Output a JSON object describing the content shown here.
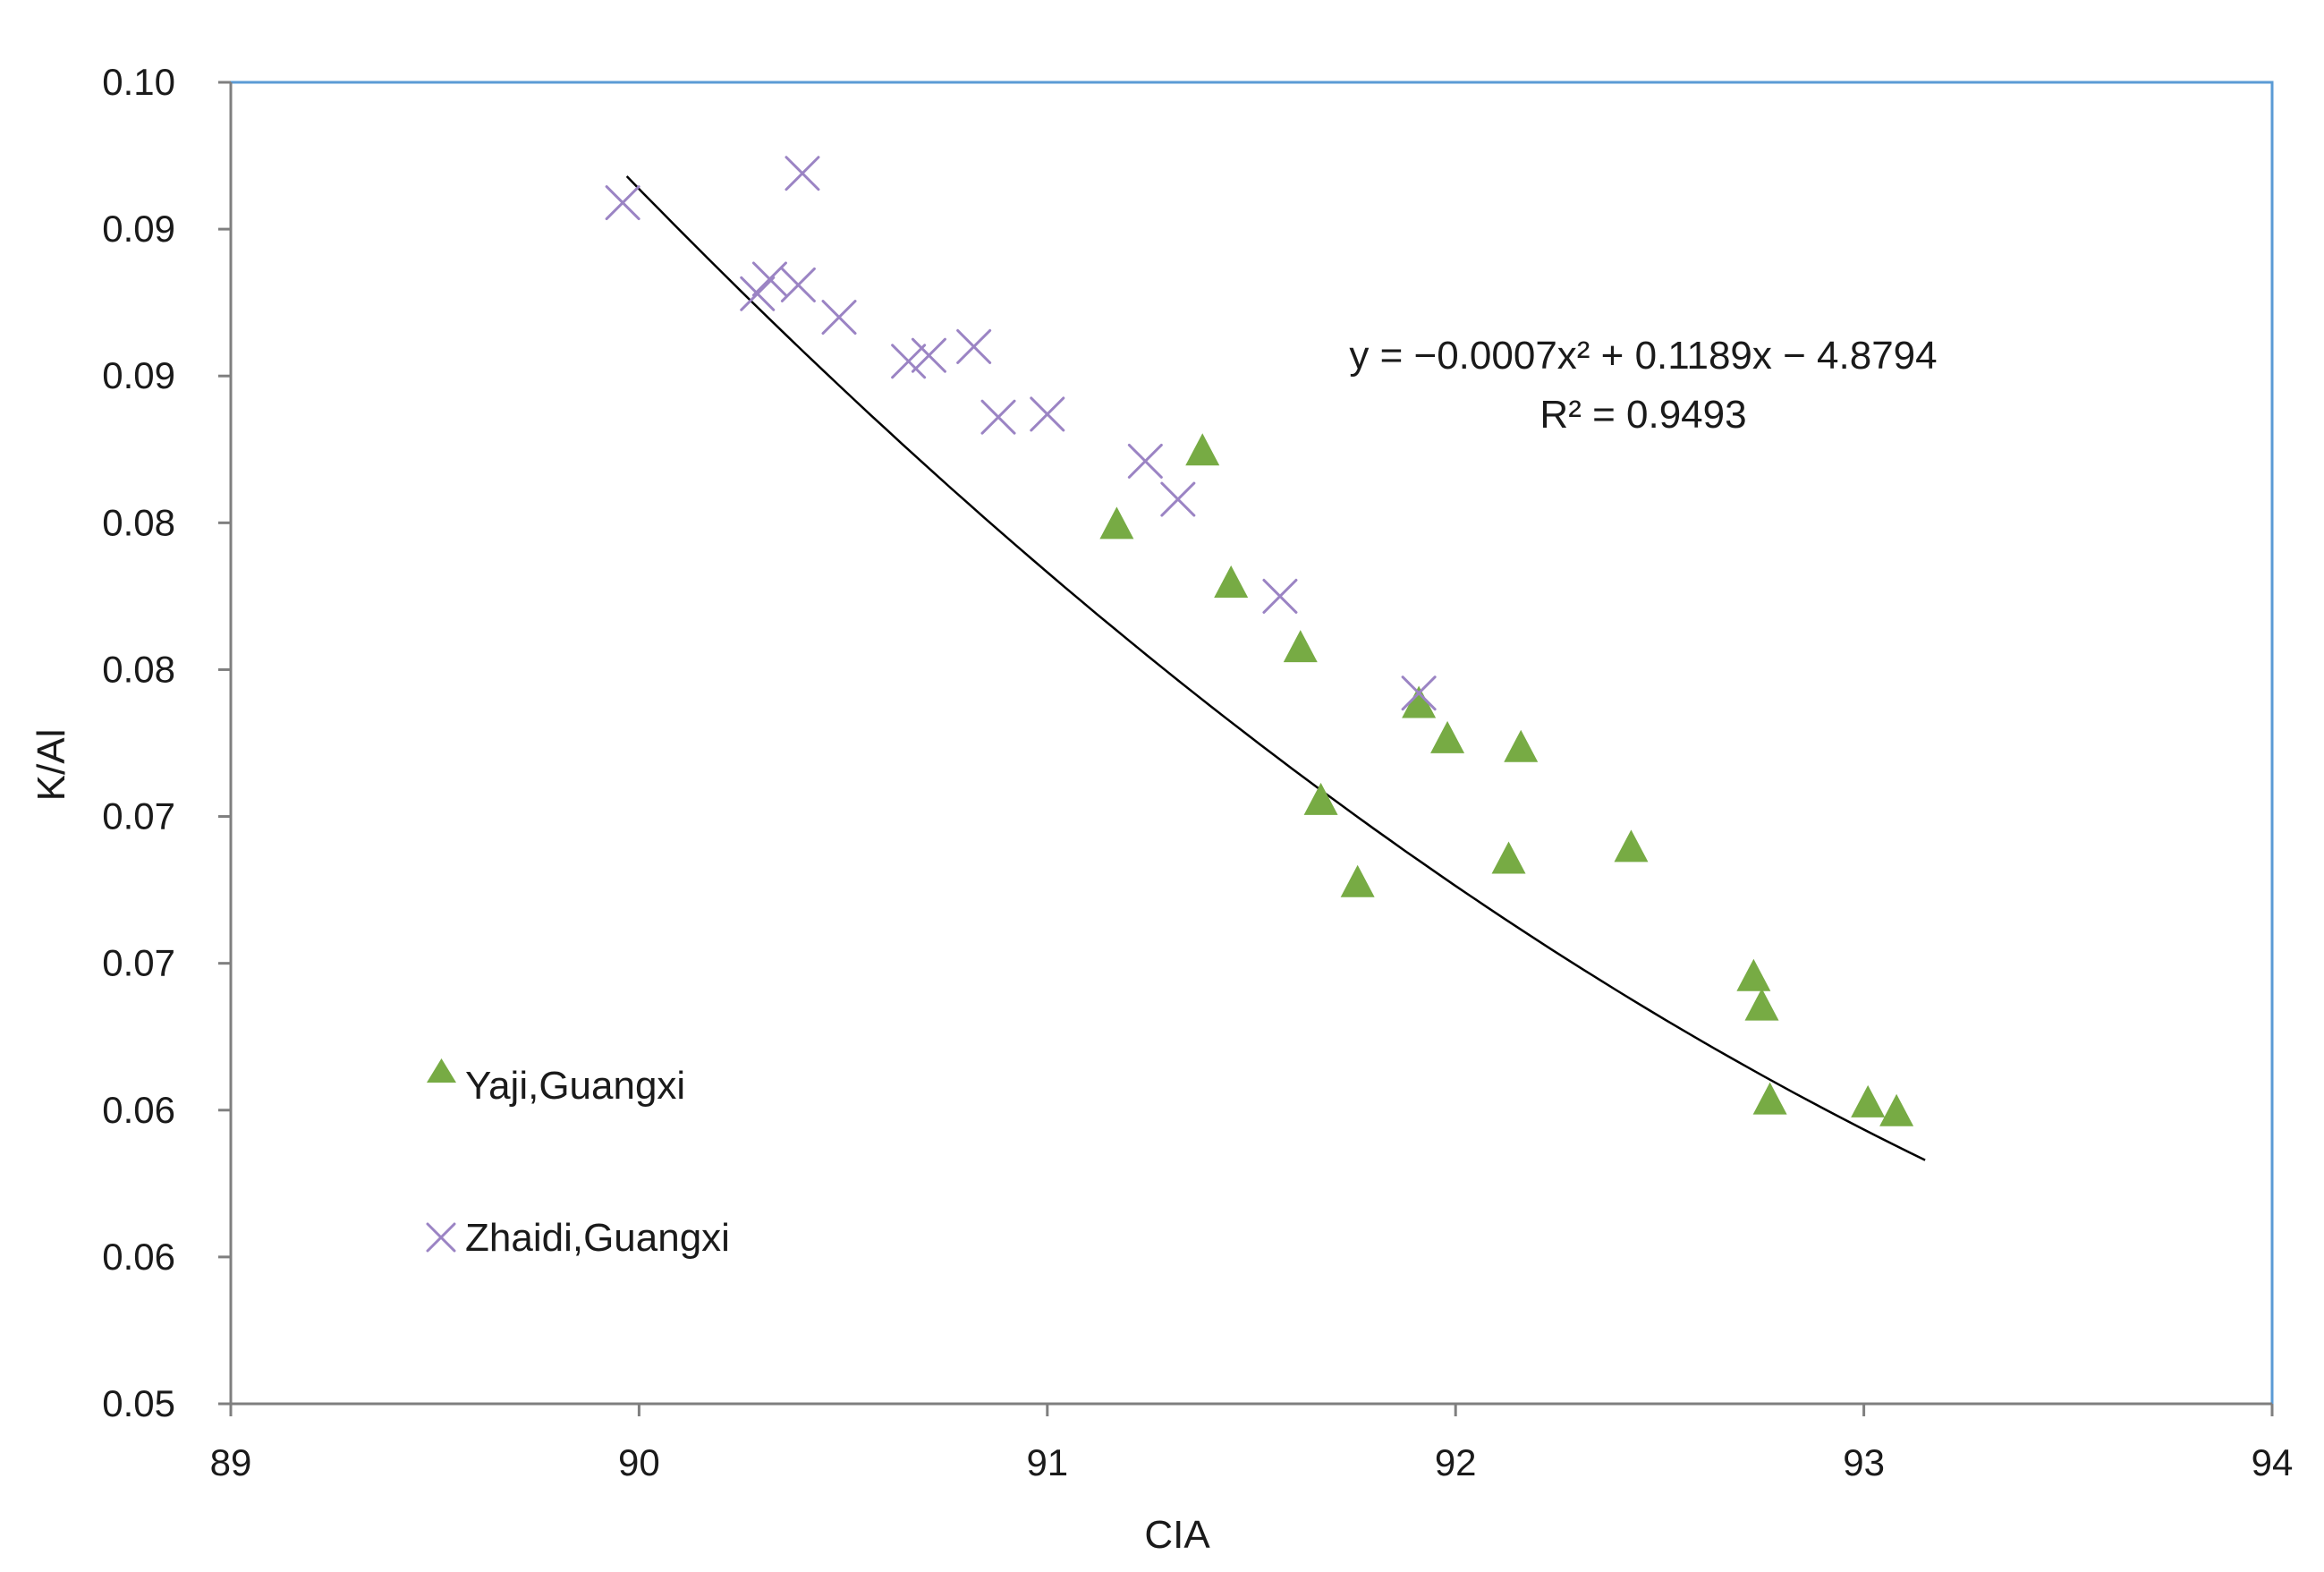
{
  "chart_data": {
    "type": "scatter",
    "xlabel": "CIA",
    "ylabel": "K/Al",
    "xlim": [
      89,
      94
    ],
    "ylim": [
      0.05,
      0.095
    ],
    "x_ticks": [
      89,
      90,
      91,
      92,
      93,
      94
    ],
    "x_tick_labels": [
      "89",
      "90",
      "91",
      "92",
      "93",
      "94"
    ],
    "y_ticks": [
      0.05,
      0.055,
      0.06,
      0.065,
      0.07,
      0.075,
      0.08,
      0.085,
      0.09,
      0.095
    ],
    "y_tick_labels": [
      "0.05",
      "0.06",
      "0.06",
      "0.07",
      "0.07",
      "0.08",
      "0.08",
      "0.09",
      "0.09",
      "0.10"
    ],
    "grid": false,
    "legend_position": "bottom-left",
    "series": [
      {
        "name": "Yaji,Guangxi",
        "marker": "triangle",
        "color": "#77ab44",
        "points": [
          [
            91.38,
            0.0825
          ],
          [
            91.17,
            0.08
          ],
          [
            91.45,
            0.078
          ],
          [
            91.62,
            0.0758
          ],
          [
            91.91,
            0.0739
          ],
          [
            91.98,
            0.0727
          ],
          [
            92.16,
            0.0724
          ],
          [
            91.67,
            0.0706
          ],
          [
            91.76,
            0.0678
          ],
          [
            92.13,
            0.0686
          ],
          [
            92.43,
            0.069
          ],
          [
            92.73,
            0.0646
          ],
          [
            92.75,
            0.0636
          ],
          [
            92.77,
            0.0604
          ],
          [
            93.01,
            0.0603
          ],
          [
            93.08,
            0.06
          ]
        ]
      },
      {
        "name": "Zhaidi,Guangxi",
        "marker": "cross",
        "color": "#9b84c4",
        "points": [
          [
            89.96,
            0.0909
          ],
          [
            90.4,
            0.0919
          ],
          [
            90.29,
            0.0878
          ],
          [
            90.32,
            0.0883
          ],
          [
            90.39,
            0.0881
          ],
          [
            90.49,
            0.087
          ],
          [
            90.66,
            0.0855
          ],
          [
            90.71,
            0.0857
          ],
          [
            90.82,
            0.086
          ],
          [
            90.88,
            0.0836
          ],
          [
            91.0,
            0.0837
          ],
          [
            91.24,
            0.0821
          ],
          [
            91.32,
            0.0808
          ],
          [
            91.57,
            0.0775
          ],
          [
            91.91,
            0.0742
          ]
        ]
      }
    ],
    "trendline": {
      "type": "polynomial",
      "x_range": [
        89.97,
        93.15
      ],
      "coefficients": {
        "a": -0.0007,
        "b": 0.1189,
        "c": -4.8794
      },
      "y_start": 0.0918,
      "y_end": 0.0583,
      "color": "#000000",
      "equation_text": "y = −0.0007x² + 0.1189x − 4.8794",
      "r2_text": "R² = 0.9493"
    }
  }
}
